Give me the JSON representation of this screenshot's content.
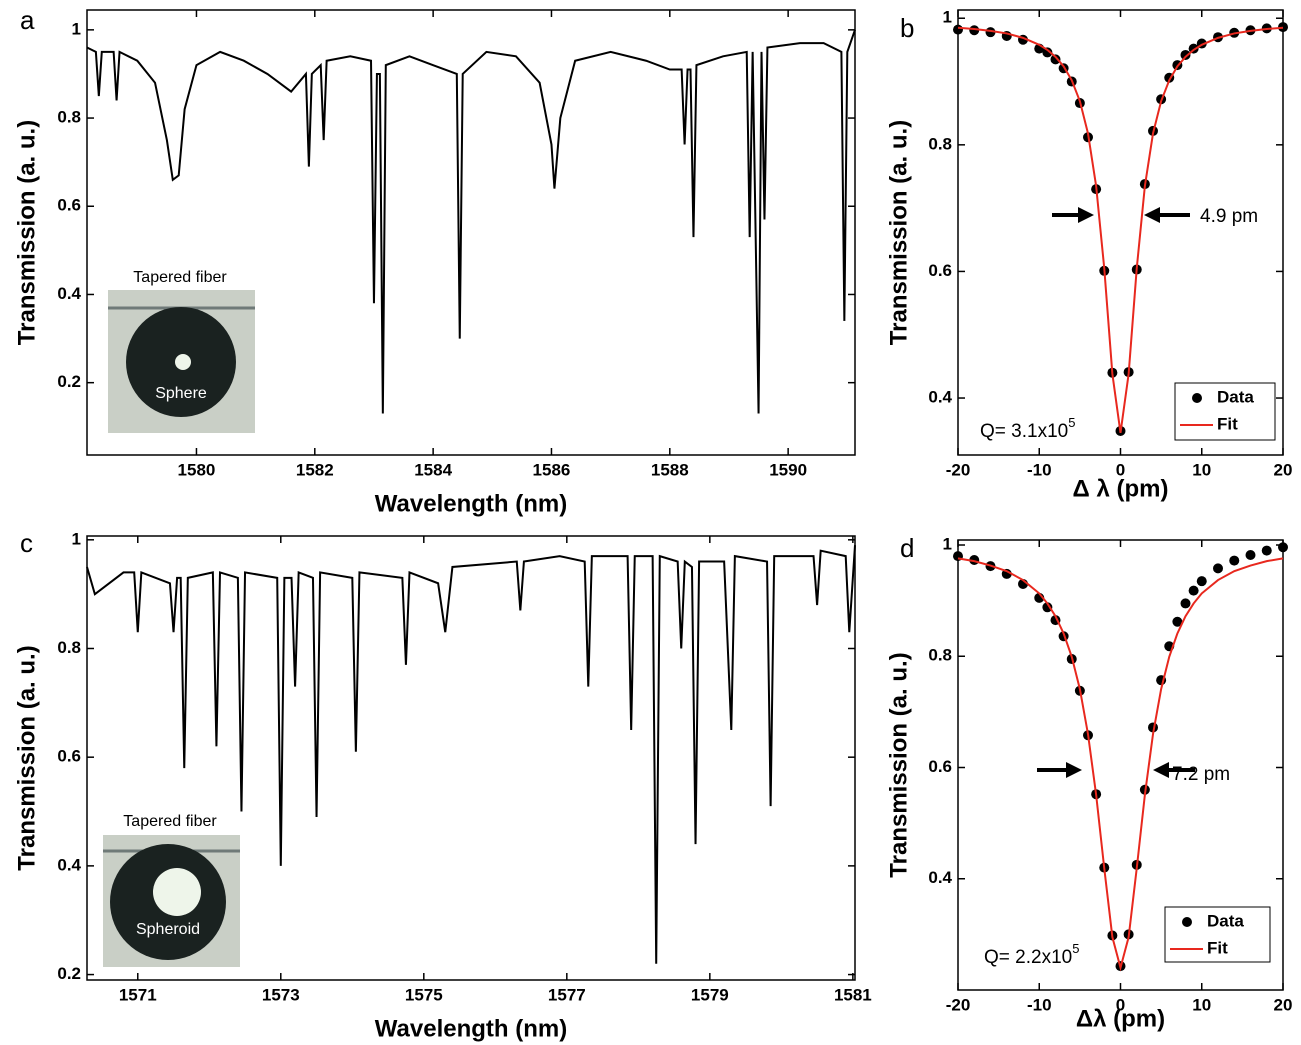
{
  "chart_data": [
    {
      "type": "line",
      "panel_label": "a",
      "xlabel": "Wavelength (nm)",
      "ylabel": "Transmission (a. u.)",
      "xlim": [
        1578.15,
        1591.13
      ],
      "ylim": [
        0.036,
        1.045
      ],
      "xticks": [
        1580,
        1582,
        1584,
        1586,
        1588,
        1590
      ],
      "yticks": [
        0.2,
        0.4,
        0.6,
        0.8,
        1
      ],
      "color": "#000000",
      "x": [
        1578.15,
        1578.3,
        1578.35,
        1578.4,
        1578.6,
        1578.65,
        1578.7,
        1579.0,
        1579.3,
        1579.5,
        1579.6,
        1579.7,
        1579.8,
        1580.0,
        1580.4,
        1580.8,
        1581.2,
        1581.6,
        1581.85,
        1581.9,
        1581.95,
        1582.1,
        1582.15,
        1582.2,
        1582.6,
        1582.95,
        1583.0,
        1583.05,
        1583.1,
        1583.15,
        1583.2,
        1583.6,
        1584.0,
        1584.4,
        1584.45,
        1584.5,
        1584.9,
        1585.4,
        1585.8,
        1586.0,
        1586.05,
        1586.15,
        1586.4,
        1587.0,
        1587.6,
        1588.0,
        1588.2,
        1588.25,
        1588.3,
        1588.35,
        1588.4,
        1588.45,
        1588.9,
        1589.3,
        1589.35,
        1589.4,
        1589.5,
        1589.55,
        1589.6,
        1589.65,
        1590.2,
        1590.6,
        1590.9,
        1590.95,
        1591.0,
        1591.13
      ],
      "values": [
        0.96,
        0.95,
        0.85,
        0.95,
        0.95,
        0.84,
        0.95,
        0.93,
        0.88,
        0.75,
        0.66,
        0.67,
        0.82,
        0.92,
        0.95,
        0.93,
        0.9,
        0.86,
        0.9,
        0.69,
        0.9,
        0.92,
        0.75,
        0.93,
        0.94,
        0.93,
        0.38,
        0.9,
        0.9,
        0.13,
        0.92,
        0.94,
        0.92,
        0.9,
        0.3,
        0.9,
        0.95,
        0.94,
        0.88,
        0.74,
        0.64,
        0.8,
        0.93,
        0.95,
        0.93,
        0.91,
        0.91,
        0.74,
        0.91,
        0.91,
        0.53,
        0.92,
        0.94,
        0.95,
        0.53,
        0.95,
        0.13,
        0.95,
        0.57,
        0.96,
        0.97,
        0.97,
        0.95,
        0.34,
        0.95,
        1.0
      ],
      "inset": {
        "title": "Tapered fiber",
        "label": "Sphere"
      }
    },
    {
      "type": "lorentz",
      "panel_label": "b",
      "xlabel": "Δ λ (pm)",
      "ylabel": "Transmission (a. u.)",
      "xlim": [
        -20,
        20
      ],
      "ylim": [
        0.31,
        1.013
      ],
      "xticks": [
        -20,
        -10,
        0,
        10,
        20
      ],
      "yticks": [
        0.4,
        0.6,
        0.8,
        1
      ],
      "legend": "lower right",
      "x": [
        -20,
        -18,
        -16,
        -14,
        -12,
        -10,
        -9,
        -8,
        -7,
        -6,
        -5,
        -4,
        -3,
        -2,
        -1,
        0,
        1,
        2,
        3,
        4,
        5,
        6,
        7,
        8,
        9,
        10,
        12,
        14,
        16,
        18,
        20
      ],
      "series": [
        {
          "name": "Data",
          "mode": "markers",
          "color": "#000000",
          "values": [
            0.982,
            0.981,
            0.978,
            0.972,
            0.966,
            0.952,
            0.946,
            0.935,
            0.921,
            0.9,
            0.866,
            0.812,
            0.73,
            0.601,
            0.44,
            0.348,
            0.441,
            0.603,
            0.738,
            0.822,
            0.872,
            0.906,
            0.926,
            0.942,
            0.952,
            0.96,
            0.97,
            0.977,
            0.981,
            0.984,
            0.986
          ]
        },
        {
          "name": "Fit",
          "mode": "line",
          "color": "#e8281e",
          "values": [
            0.985,
            0.983,
            0.98,
            0.976,
            0.969,
            0.958,
            0.95,
            0.939,
            0.924,
            0.902,
            0.869,
            0.818,
            0.735,
            0.605,
            0.438,
            0.345,
            0.438,
            0.605,
            0.735,
            0.818,
            0.869,
            0.902,
            0.924,
            0.939,
            0.95,
            0.958,
            0.969,
            0.976,
            0.98,
            0.983,
            0.985
          ]
        }
      ],
      "annotations": [
        {
          "text": "4.9 pm"
        },
        {
          "text": "Q= 3.1x10",
          "sup": "5"
        }
      ]
    },
    {
      "type": "line",
      "panel_label": "c",
      "xlabel": "Wavelength (nm)",
      "ylabel": "Transmission (a. u.)",
      "xlim": [
        1570.29,
        1581.03
      ],
      "ylim": [
        0.19,
        1.007
      ],
      "xticks": [
        1571,
        1573,
        1575,
        1577,
        1579,
        1581
      ],
      "yticks": [
        0.2,
        0.4,
        0.6,
        0.8,
        1
      ],
      "color": "#000000",
      "x": [
        1570.29,
        1570.4,
        1570.8,
        1570.95,
        1571.0,
        1571.05,
        1571.45,
        1571.5,
        1571.55,
        1571.6,
        1571.65,
        1571.7,
        1572.05,
        1572.1,
        1572.15,
        1572.4,
        1572.45,
        1572.5,
        1572.95,
        1573.0,
        1573.05,
        1573.15,
        1573.2,
        1573.25,
        1573.45,
        1573.5,
        1573.55,
        1574.0,
        1574.05,
        1574.1,
        1574.7,
        1574.75,
        1574.8,
        1575.2,
        1575.3,
        1575.4,
        1576.3,
        1576.35,
        1576.4,
        1576.9,
        1577.25,
        1577.3,
        1577.35,
        1577.85,
        1577.9,
        1577.95,
        1578.2,
        1578.25,
        1578.3,
        1578.55,
        1578.6,
        1578.65,
        1578.75,
        1578.8,
        1578.85,
        1579.2,
        1579.3,
        1579.35,
        1579.8,
        1579.85,
        1579.9,
        1580.45,
        1580.5,
        1580.55,
        1580.9,
        1580.95,
        1581.03
      ],
      "values": [
        0.95,
        0.9,
        0.94,
        0.94,
        0.83,
        0.94,
        0.92,
        0.83,
        0.93,
        0.93,
        0.58,
        0.93,
        0.94,
        0.62,
        0.94,
        0.93,
        0.5,
        0.94,
        0.93,
        0.4,
        0.93,
        0.93,
        0.73,
        0.94,
        0.93,
        0.49,
        0.94,
        0.93,
        0.61,
        0.94,
        0.93,
        0.77,
        0.94,
        0.92,
        0.83,
        0.95,
        0.96,
        0.87,
        0.96,
        0.97,
        0.96,
        0.73,
        0.97,
        0.97,
        0.65,
        0.97,
        0.97,
        0.22,
        0.97,
        0.96,
        0.8,
        0.96,
        0.95,
        0.44,
        0.96,
        0.96,
        0.65,
        0.97,
        0.96,
        0.51,
        0.97,
        0.97,
        0.88,
        0.98,
        0.97,
        0.83,
        0.99
      ],
      "inset": {
        "title": "Tapered fiber",
        "label": "Spheroid"
      }
    },
    {
      "type": "lorentz",
      "panel_label": "d",
      "xlabel": "Δλ (pm)",
      "ylabel": "Transmission (a. u.)",
      "xlim": [
        -20,
        20
      ],
      "ylim": [
        0.2,
        1.009
      ],
      "xticks": [
        -20,
        -10,
        0,
        10,
        20
      ],
      "yticks": [
        0.4,
        0.6,
        0.8,
        1
      ],
      "legend": "lower right",
      "x": [
        -20,
        -18,
        -16,
        -14,
        -12,
        -10,
        -9,
        -8,
        -7,
        -6,
        -5,
        -4,
        -3,
        -2,
        -1,
        0,
        1,
        2,
        3,
        4,
        5,
        6,
        7,
        8,
        9,
        10,
        12,
        14,
        16,
        18,
        20
      ],
      "series": [
        {
          "name": "Data",
          "mode": "markers",
          "color": "#000000",
          "values": [
            0.98,
            0.973,
            0.962,
            0.948,
            0.93,
            0.905,
            0.888,
            0.865,
            0.836,
            0.795,
            0.738,
            0.658,
            0.552,
            0.42,
            0.298,
            0.243,
            0.3,
            0.425,
            0.56,
            0.672,
            0.757,
            0.818,
            0.862,
            0.895,
            0.918,
            0.935,
            0.958,
            0.972,
            0.982,
            0.99,
            0.996
          ]
        },
        {
          "name": "Fit",
          "mode": "line",
          "color": "#e8281e",
          "values": [
            0.976,
            0.971,
            0.963,
            0.953,
            0.937,
            0.913,
            0.895,
            0.872,
            0.841,
            0.799,
            0.741,
            0.66,
            0.551,
            0.419,
            0.295,
            0.24,
            0.295,
            0.419,
            0.551,
            0.66,
            0.741,
            0.799,
            0.841,
            0.872,
            0.895,
            0.913,
            0.937,
            0.953,
            0.963,
            0.971,
            0.976
          ]
        }
      ],
      "annotations": [
        {
          "text": "7.2 pm"
        },
        {
          "text": "Q= 2.2x10",
          "sup": "5"
        }
      ]
    }
  ]
}
